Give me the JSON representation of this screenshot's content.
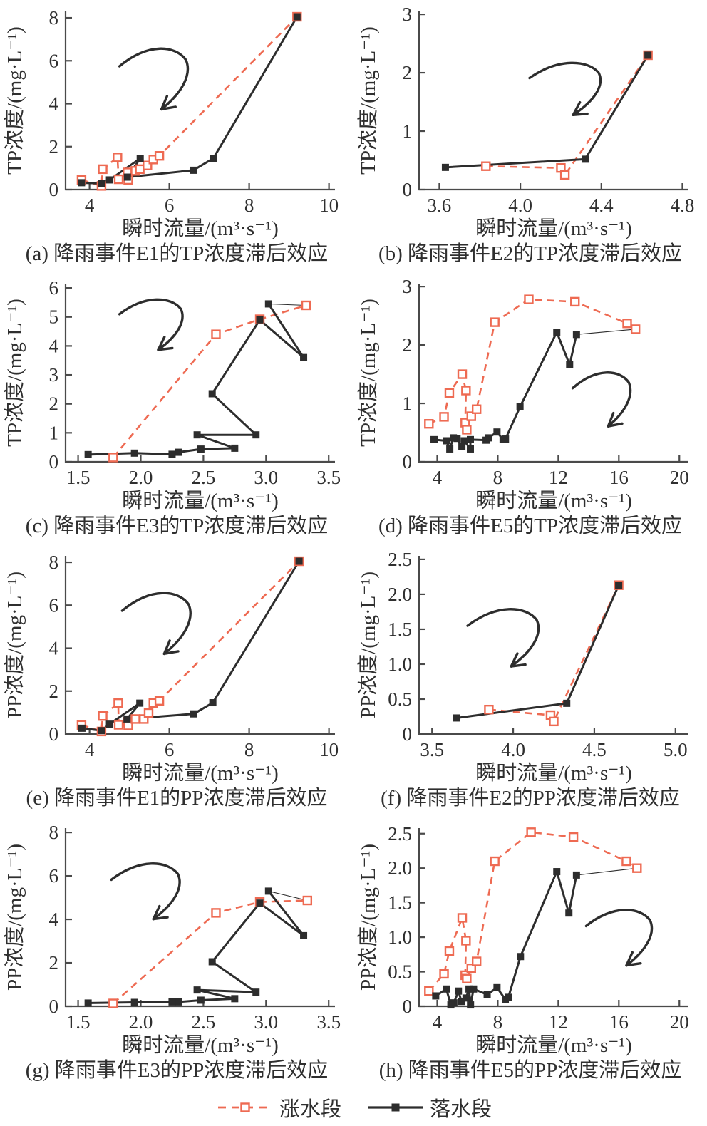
{
  "colors": {
    "rising": "#ee6a52",
    "falling": "#2d2d2d",
    "axis": "#4a4a4a",
    "text": "#2f2f2f",
    "marker_fill_open": "#ffffff"
  },
  "legend": {
    "items": [
      {
        "key": "rising",
        "label": "涨水段"
      },
      {
        "key": "falling",
        "label": "落水段"
      }
    ]
  },
  "chart_data": [
    {
      "id": "a",
      "type": "line",
      "caption": "(a) 降雨事件E1的TP浓度滞后效应",
      "xlabel": "瞬时流量/(m³·s⁻¹)",
      "ylabel": "TP浓度/(mg·L⁻¹)",
      "xlim": [
        3.4,
        10.15
      ],
      "ylim": [
        0,
        8.3
      ],
      "xticks": [
        4,
        6,
        8,
        10
      ],
      "xtick_labels": [
        "4",
        "6",
        "8",
        "10"
      ],
      "yticks": [
        0,
        2,
        4,
        6,
        8
      ],
      "ytick_labels": [
        "0",
        "2",
        "4",
        "6",
        "8"
      ],
      "connector": false,
      "arrow": {
        "fx": 0.2,
        "fy": 0.21,
        "fw": 0.26,
        "fh": 0.35
      },
      "series": {
        "rising": {
          "name": "涨水段",
          "points": [
            [
              3.8,
              0.45
            ],
            [
              4.3,
              0.17
            ],
            [
              4.33,
              0.95
            ],
            [
              4.7,
              1.5
            ],
            [
              4.73,
              0.48
            ],
            [
              4.95,
              0.8
            ],
            [
              4.97,
              0.45
            ],
            [
              5.15,
              0.87
            ],
            [
              5.26,
              0.95
            ],
            [
              5.45,
              1.12
            ],
            [
              5.6,
              1.4
            ],
            [
              5.75,
              1.57
            ],
            [
              9.2,
              8.05
            ]
          ]
        },
        "falling": {
          "name": "落水段",
          "points": [
            [
              9.2,
              8.05
            ],
            [
              7.1,
              1.45
            ],
            [
              6.6,
              0.9
            ],
            [
              4.95,
              0.58
            ],
            [
              5.27,
              1.45
            ],
            [
              4.5,
              0.45
            ],
            [
              4.3,
              0.28
            ],
            [
              3.8,
              0.32
            ]
          ]
        }
      }
    },
    {
      "id": "b",
      "type": "line",
      "caption": "(b) 降雨事件E2的TP浓度滞后效应",
      "xlabel": "瞬时流量/(m³·s⁻¹)",
      "ylabel": "TP浓度/(mg·L⁻¹)",
      "xlim": [
        3.5,
        4.83
      ],
      "ylim": [
        0,
        3.05
      ],
      "xticks": [
        3.6,
        4.0,
        4.4,
        4.8
      ],
      "xtick_labels": [
        "3.6",
        "4.0",
        "4.4",
        "4.8"
      ],
      "yticks": [
        0,
        1,
        2,
        3
      ],
      "ytick_labels": [
        "0",
        "1",
        "2",
        "3"
      ],
      "connector": false,
      "arrow": {
        "fx": 0.41,
        "fy": 0.29,
        "fw": 0.27,
        "fh": 0.3
      },
      "series": {
        "rising": {
          "name": "涨水段",
          "points": [
            [
              3.83,
              0.4
            ],
            [
              4.2,
              0.37
            ],
            [
              4.22,
              0.25
            ],
            [
              4.63,
              2.3
            ]
          ]
        },
        "falling": {
          "name": "落水段",
          "points": [
            [
              4.63,
              2.3
            ],
            [
              4.32,
              0.52
            ],
            [
              3.63,
              0.38
            ]
          ]
        }
      }
    },
    {
      "id": "c",
      "type": "line",
      "caption": "(c) 降雨事件E3的TP浓度滞后效应",
      "xlabel": "瞬时流量/(m³·s⁻¹)",
      "ylabel": "TP浓度/(mg·L⁻¹)",
      "xlim": [
        1.4,
        3.55
      ],
      "ylim": [
        0,
        6.15
      ],
      "xticks": [
        1.5,
        2.0,
        2.5,
        3.0,
        3.5
      ],
      "xtick_labels": [
        "1.5",
        "2.0",
        "2.5",
        "3.0",
        "3.5"
      ],
      "yticks": [
        0,
        1,
        2,
        3,
        4,
        5,
        6
      ],
      "ytick_labels": [
        "0",
        "1",
        "2",
        "3",
        "4",
        "5",
        "6"
      ],
      "connector": true,
      "arrow": {
        "fx": 0.2,
        "fy": 0.09,
        "fw": 0.24,
        "fh": 0.29
      },
      "series": {
        "rising": {
          "name": "涨水段",
          "points": [
            [
              1.78,
              0.15
            ],
            [
              2.6,
              4.4
            ],
            [
              2.95,
              4.92
            ],
            [
              3.32,
              5.4
            ]
          ]
        },
        "falling": {
          "name": "落水段",
          "points": [
            [
              3.02,
              5.45
            ],
            [
              3.3,
              3.6
            ],
            [
              2.95,
              4.9
            ],
            [
              2.57,
              2.35
            ],
            [
              2.92,
              0.93
            ],
            [
              2.45,
              0.93
            ],
            [
              2.75,
              0.47
            ],
            [
              2.48,
              0.44
            ],
            [
              2.3,
              0.33
            ],
            [
              2.25,
              0.26
            ],
            [
              1.95,
              0.3
            ],
            [
              1.58,
              0.25
            ]
          ]
        }
      }
    },
    {
      "id": "d",
      "type": "line",
      "caption": "(d) 降雨事件E5的TP浓度滞后效应",
      "xlabel": "瞬时流量/(m³·s⁻¹)",
      "ylabel": "TP浓度/(mg·L⁻¹)",
      "xlim": [
        2.8,
        20.6
      ],
      "ylim": [
        0,
        3.05
      ],
      "xticks": [
        4,
        8,
        12,
        16,
        20
      ],
      "xtick_labels": [
        "4",
        "8",
        "12",
        "16",
        "20"
      ],
      "yticks": [
        0,
        1,
        2,
        3
      ],
      "ytick_labels": [
        "0",
        "1",
        "2",
        "3"
      ],
      "connector": true,
      "arrow": {
        "fx": 0.57,
        "fy": 0.5,
        "fw": 0.22,
        "fh": 0.31
      },
      "series": {
        "rising": {
          "name": "涨水段",
          "points": [
            [
              3.45,
              0.65
            ],
            [
              4.45,
              0.77
            ],
            [
              4.8,
              1.18
            ],
            [
              5.65,
              1.5
            ],
            [
              5.9,
              1.22
            ],
            [
              5.85,
              0.67
            ],
            [
              5.95,
              0.55
            ],
            [
              6.25,
              0.78
            ],
            [
              6.6,
              0.9
            ],
            [
              7.8,
              2.39
            ],
            [
              10.05,
              2.78
            ],
            [
              13.1,
              2.74
            ],
            [
              16.55,
              2.37
            ],
            [
              17.1,
              2.27
            ]
          ]
        },
        "falling": {
          "name": "落水段",
          "points": [
            [
              13.2,
              2.18
            ],
            [
              12.75,
              1.66
            ],
            [
              11.9,
              2.22
            ],
            [
              9.47,
              0.94
            ],
            [
              8.51,
              0.39
            ],
            [
              8.35,
              0.38
            ],
            [
              7.95,
              0.51
            ],
            [
              7.39,
              0.41
            ],
            [
              7.23,
              0.37
            ],
            [
              6.19,
              0.38
            ],
            [
              6.19,
              0.22
            ],
            [
              5.79,
              0.36
            ],
            [
              5.63,
              0.26
            ],
            [
              5.31,
              0.4
            ],
            [
              5.07,
              0.41
            ],
            [
              4.83,
              0.22
            ],
            [
              4.59,
              0.36
            ],
            [
              3.79,
              0.38
            ]
          ]
        }
      }
    },
    {
      "id": "e",
      "type": "line",
      "caption": "(e) 降雨事件E1的PP浓度滞后效应",
      "xlabel": "瞬时流量/(m³·s⁻¹)",
      "ylabel": "PP浓度/(mg·L⁻¹)",
      "xlim": [
        3.4,
        10.15
      ],
      "ylim": [
        0,
        8.3
      ],
      "xticks": [
        4,
        6,
        8,
        10
      ],
      "xtick_labels": [
        "4",
        "6",
        "8",
        "10"
      ],
      "yticks": [
        0,
        2,
        4,
        6,
        8
      ],
      "ytick_labels": [
        "0",
        "2",
        "4",
        "6",
        "8"
      ],
      "connector": false,
      "arrow": {
        "fx": 0.21,
        "fy": 0.21,
        "fw": 0.26,
        "fh": 0.35
      },
      "series": {
        "rising": {
          "name": "涨水段",
          "points": [
            [
              3.8,
              0.42
            ],
            [
              4.3,
              0.12
            ],
            [
              4.33,
              0.84
            ],
            [
              4.72,
              1.44
            ],
            [
              4.73,
              0.43
            ],
            [
              4.95,
              0.57
            ],
            [
              4.97,
              0.4
            ],
            [
              5.15,
              0.7
            ],
            [
              5.36,
              0.7
            ],
            [
              5.48,
              0.98
            ],
            [
              5.6,
              1.45
            ],
            [
              5.75,
              1.55
            ],
            [
              9.25,
              8.05
            ]
          ]
        },
        "falling": {
          "name": "落水段",
          "points": [
            [
              9.25,
              8.05
            ],
            [
              7.09,
              1.46
            ],
            [
              6.61,
              0.94
            ],
            [
              4.94,
              0.7
            ],
            [
              5.26,
              1.44
            ],
            [
              4.5,
              0.46
            ],
            [
              4.3,
              0.16
            ],
            [
              3.81,
              0.27
            ]
          ]
        }
      }
    },
    {
      "id": "f",
      "type": "line",
      "caption": "(f) 降雨事件E2的PP浓度滞后效应",
      "xlabel": "瞬时流量/(m³·s⁻¹)",
      "ylabel": "PP浓度/(mg·L⁻¹)",
      "xlim": [
        3.42,
        5.08
      ],
      "ylim": [
        0,
        2.55
      ],
      "xticks": [
        3.5,
        4.0,
        4.5,
        5.0
      ],
      "xtick_labels": [
        "3.5",
        "4.0",
        "4.5",
        "5.0"
      ],
      "yticks": [
        0,
        0.5,
        1.0,
        1.5,
        2.0,
        2.5
      ],
      "ytick_labels": [
        "0",
        "0.5",
        "1.0",
        "1.5",
        "2.0",
        "2.5"
      ],
      "connector": false,
      "arrow": {
        "fx": 0.18,
        "fy": 0.3,
        "fw": 0.27,
        "fh": 0.33
      },
      "series": {
        "rising": {
          "name": "涨水段",
          "points": [
            [
              3.85,
              0.35
            ],
            [
              4.23,
              0.27
            ],
            [
              4.25,
              0.18
            ],
            [
              4.65,
              2.13
            ]
          ]
        },
        "falling": {
          "name": "落水段",
          "points": [
            [
              4.65,
              2.13
            ],
            [
              4.33,
              0.44
            ],
            [
              3.65,
              0.23
            ]
          ]
        }
      }
    },
    {
      "id": "g",
      "type": "line",
      "caption": "(g) 降雨事件E3的PP浓度滞后效应",
      "xlabel": "瞬时流量/(m³·s⁻¹)",
      "ylabel": "PP浓度/(mg·L⁻¹)",
      "xlim": [
        1.4,
        3.55
      ],
      "ylim": [
        0,
        8.2
      ],
      "xticks": [
        1.5,
        2.0,
        2.5,
        3.0,
        3.5
      ],
      "xtick_labels": [
        "1.5",
        "2.0",
        "2.5",
        "3.0",
        "3.5"
      ],
      "yticks": [
        0,
        2,
        4,
        6,
        8
      ],
      "ytick_labels": [
        "0",
        "2",
        "4",
        "6",
        "8"
      ],
      "connector": true,
      "arrow": {
        "fx": 0.17,
        "fy": 0.2,
        "fw": 0.26,
        "fh": 0.32
      },
      "series": {
        "rising": {
          "name": "涨水段",
          "points": [
            [
              1.78,
              0.13
            ],
            [
              2.6,
              4.3
            ],
            [
              2.95,
              4.8
            ],
            [
              3.33,
              4.87
            ]
          ]
        },
        "falling": {
          "name": "落水段",
          "points": [
            [
              3.02,
              5.3
            ],
            [
              3.3,
              3.25
            ],
            [
              2.95,
              4.75
            ],
            [
              2.57,
              2.05
            ],
            [
              2.92,
              0.65
            ],
            [
              2.45,
              0.75
            ],
            [
              2.75,
              0.35
            ],
            [
              2.48,
              0.28
            ],
            [
              2.3,
              0.2
            ],
            [
              2.25,
              0.2
            ],
            [
              1.95,
              0.18
            ],
            [
              1.58,
              0.15
            ]
          ]
        }
      }
    },
    {
      "id": "h",
      "type": "line",
      "caption": "(h) 降雨事件E5的PP浓度滞后效应",
      "xlabel": "瞬时流量/(m³·s⁻¹)",
      "ylabel": "PP浓度/(mg·L⁻¹)",
      "xlim": [
        2.8,
        20.6
      ],
      "ylim": [
        0,
        2.58
      ],
      "xticks": [
        4,
        8,
        12,
        16,
        20
      ],
      "xtick_labels": [
        "4",
        "8",
        "12",
        "16",
        "20"
      ],
      "yticks": [
        0,
        0.5,
        1.0,
        1.5,
        2.0,
        2.5
      ],
      "ytick_labels": [
        "0",
        "0.5",
        "1.0",
        "1.5",
        "2.0",
        "2.5"
      ],
      "connector": true,
      "arrow": {
        "fx": 0.62,
        "fy": 0.46,
        "fw": 0.25,
        "fh": 0.32
      },
      "series": {
        "rising": {
          "name": "涨水段",
          "points": [
            [
              3.45,
              0.22
            ],
            [
              4.45,
              0.47
            ],
            [
              4.8,
              0.8
            ],
            [
              5.65,
              1.28
            ],
            [
              5.9,
              0.95
            ],
            [
              5.85,
              0.45
            ],
            [
              5.95,
              0.4
            ],
            [
              6.25,
              0.55
            ],
            [
              6.6,
              0.65
            ],
            [
              7.8,
              2.1
            ],
            [
              10.2,
              2.52
            ],
            [
              13.0,
              2.45
            ],
            [
              16.5,
              2.1
            ],
            [
              17.2,
              2.0
            ]
          ]
        },
        "falling": {
          "name": "落水段",
          "points": [
            [
              13.2,
              1.9
            ],
            [
              12.7,
              1.35
            ],
            [
              11.9,
              1.95
            ],
            [
              9.5,
              0.72
            ],
            [
              8.7,
              0.13
            ],
            [
              8.5,
              0.1
            ],
            [
              7.95,
              0.27
            ],
            [
              7.3,
              0.17
            ],
            [
              6.4,
              0.25
            ],
            [
              6.2,
              0.02
            ],
            [
              6.1,
              0.25
            ],
            [
              5.9,
              0.12
            ],
            [
              5.6,
              0.07
            ],
            [
              5.4,
              0.22
            ],
            [
              5.1,
              0.05
            ],
            [
              4.9,
              0.02
            ],
            [
              4.6,
              0.25
            ],
            [
              3.9,
              0.15
            ]
          ]
        }
      }
    }
  ]
}
